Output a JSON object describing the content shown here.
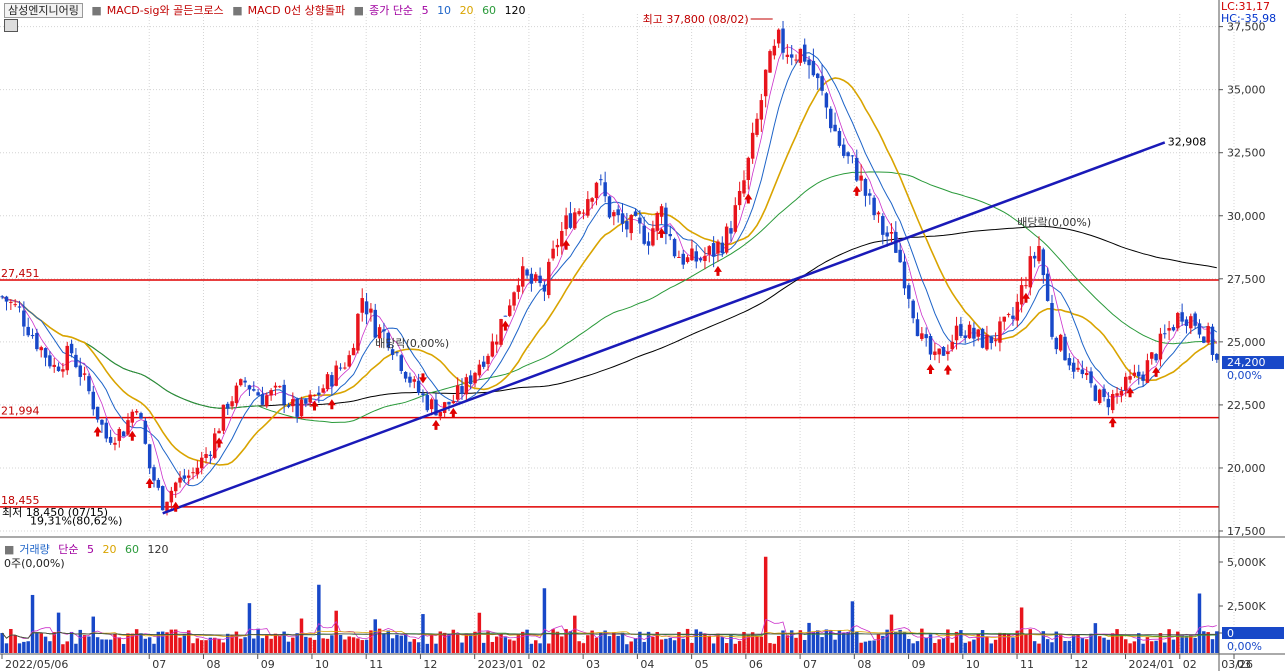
{
  "header": {
    "stock_name": "삼성엔지니어링",
    "ind1": "MACD-sig와 골든크로스",
    "ind2": "MACD 0선 상향돌파",
    "ma_label": "종가 단순",
    "ma_periods": [
      "5",
      "10",
      "20",
      "60",
      "120"
    ],
    "lc": "LC:31,17",
    "hc": "HC:-35,98"
  },
  "volume_header": {
    "label": "거래량",
    "ma_label": "단순",
    "ma_periods": [
      "5",
      "20",
      "60",
      "120"
    ],
    "value": "0주(0,00%)"
  },
  "colors": {
    "up": "#e8141c",
    "down": "#1848c8",
    "ma5": "#cc33cc",
    "ma10": "#1e64c8",
    "ma20": "#d9a400",
    "ma60": "#2a9a3a",
    "ma120": "#000000",
    "trendline": "#1a1ab8",
    "hline": "#e00000"
  },
  "chart_data": {
    "type": "candlestick",
    "price_axis": {
      "min": 17500,
      "max": 38000,
      "ticks": [
        "37,500",
        "35,000",
        "32,500",
        "30,000",
        "27,500",
        "25,000",
        "22,500",
        "20,000",
        "17,500"
      ]
    },
    "volume_axis": {
      "ticks": [
        "5,000K",
        "2,500K",
        "0"
      ]
    },
    "x_ticks": [
      "2022/05/06",
      "07",
      "08",
      "09",
      "10",
      "11",
      "12",
      "2023/01",
      "02",
      "03",
      "04",
      "05",
      "06",
      "07",
      "08",
      "09",
      "10",
      "11",
      "12",
      "2024/01",
      "02",
      "03",
      "03/26"
    ],
    "close_path": [
      [
        0,
        26800
      ],
      [
        4,
        26200
      ],
      [
        8,
        25000
      ],
      [
        12,
        24000
      ],
      [
        16,
        24600
      ],
      [
        20,
        23000
      ],
      [
        24,
        21200
      ],
      [
        28,
        21500
      ],
      [
        31,
        22600
      ],
      [
        34,
        20000
      ],
      [
        37,
        18600
      ],
      [
        40,
        19400
      ],
      [
        44,
        19800
      ],
      [
        48,
        20800
      ],
      [
        52,
        22600
      ],
      [
        56,
        23400
      ],
      [
        60,
        22800
      ],
      [
        64,
        23000
      ],
      [
        68,
        22200
      ],
      [
        72,
        22800
      ],
      [
        76,
        23600
      ],
      [
        80,
        24400
      ],
      [
        83,
        26800
      ],
      [
        86,
        25600
      ],
      [
        89,
        25200
      ],
      [
        92,
        24200
      ],
      [
        95,
        23200
      ],
      [
        98,
        22600
      ],
      [
        101,
        22300
      ],
      [
        104,
        22700
      ],
      [
        107,
        23300
      ],
      [
        110,
        24200
      ],
      [
        113,
        24900
      ],
      [
        116,
        26200
      ],
      [
        119,
        27700
      ],
      [
        122,
        27300
      ],
      [
        125,
        27100
      ],
      [
        128,
        29000
      ],
      [
        131,
        30000
      ],
      [
        134,
        30500
      ],
      [
        137,
        31500
      ],
      [
        140,
        30200
      ],
      [
        143,
        29600
      ],
      [
        146,
        29500
      ],
      [
        149,
        29200
      ],
      [
        152,
        30200
      ],
      [
        155,
        28600
      ],
      [
        158,
        28200
      ],
      [
        161,
        28300
      ],
      [
        164,
        28600
      ],
      [
        167,
        29200
      ],
      [
        170,
        30600
      ],
      [
        173,
        32800
      ],
      [
        176,
        35500
      ],
      [
        179,
        36800
      ],
      [
        182,
        36600
      ],
      [
        185,
        36400
      ],
      [
        188,
        35200
      ],
      [
        191,
        33800
      ],
      [
        194,
        32400
      ],
      [
        197,
        31800
      ],
      [
        200,
        30400
      ],
      [
        203,
        29400
      ],
      [
        206,
        28800
      ],
      [
        209,
        27000
      ],
      [
        212,
        25000
      ],
      [
        215,
        24200
      ],
      [
        218,
        24900
      ],
      [
        221,
        25600
      ],
      [
        224,
        25200
      ],
      [
        227,
        25000
      ],
      [
        230,
        25400
      ],
      [
        233,
        25900
      ],
      [
        236,
        27600
      ],
      [
        239,
        28800
      ],
      [
        242,
        25400
      ],
      [
        245,
        24600
      ],
      [
        248,
        23800
      ],
      [
        251,
        23200
      ],
      [
        254,
        22600
      ],
      [
        257,
        22900
      ],
      [
        260,
        23400
      ],
      [
        263,
        23800
      ],
      [
        266,
        24600
      ],
      [
        269,
        25500
      ],
      [
        272,
        26200
      ],
      [
        275,
        25800
      ],
      [
        278,
        25200
      ],
      [
        280,
        24200
      ]
    ],
    "hlines": [
      {
        "value": 27451,
        "label": "27,451"
      },
      {
        "value": 21994,
        "label": "21,994"
      },
      {
        "value": 18455,
        "label": "18,455"
      }
    ],
    "trendline": {
      "from": [
        37,
        18200
      ],
      "to": [
        268,
        32908
      ],
      "label": "32,908"
    },
    "annotations": {
      "high": "최고 37,800 (08/02)",
      "low": "최저 18,450 (07/15)",
      "low_pct": "19,31%(80,62%)",
      "dividend1": "배당락(0,00%)",
      "dividend2": "배당락(0,00%)"
    },
    "current": {
      "price": "24,200",
      "change": "0,00%",
      "volume": "0"
    },
    "volume_max_k": 6000
  }
}
